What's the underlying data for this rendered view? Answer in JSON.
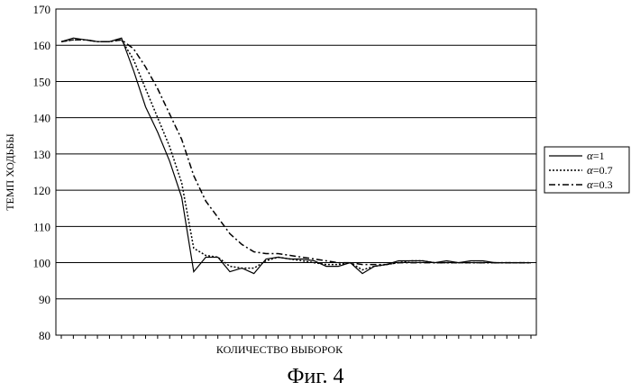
{
  "chart_data": {
    "type": "line",
    "title": "",
    "xlabel": "КОЛИЧЕСТВО ВЫБОРОК",
    "ylabel": "ТЕМП ХОДЬБЫ",
    "caption": "Фиг. 4",
    "ylim": [
      80,
      170
    ],
    "yticks": [
      80,
      90,
      100,
      110,
      120,
      130,
      140,
      150,
      160,
      170
    ],
    "xlim": [
      0,
      39
    ],
    "grid": "horizontal",
    "legend_position": "right",
    "series": [
      {
        "name": "α=1",
        "legend_symbol": "α",
        "legend_value": "=1",
        "style": "solid",
        "x": [
          0,
          1,
          2,
          3,
          4,
          5,
          6,
          7,
          8,
          9,
          10,
          11,
          12,
          13,
          14,
          15,
          16,
          17,
          18,
          19,
          20,
          21,
          22,
          23,
          24,
          25,
          26,
          27,
          28,
          29,
          30,
          31,
          32,
          33,
          34,
          35,
          36,
          37,
          38,
          39
        ],
        "values": [
          161,
          162,
          161.5,
          161,
          161,
          162,
          153,
          143,
          136,
          128,
          118,
          97.5,
          101.5,
          101.5,
          97.5,
          98.5,
          97,
          101,
          101.5,
          101,
          101,
          100.5,
          99,
          99,
          100,
          97,
          99,
          99.5,
          100.5,
          100.5,
          100.5,
          100,
          100.5,
          100,
          100.5,
          100.5,
          100,
          100,
          100,
          100
        ]
      },
      {
        "name": "α=0.7",
        "legend_symbol": "α",
        "legend_value": "=0.7",
        "style": "dotted",
        "x": [
          0,
          1,
          2,
          3,
          4,
          5,
          6,
          7,
          8,
          9,
          10,
          11,
          12,
          13,
          14,
          15,
          16,
          17,
          18,
          19,
          20,
          21,
          22,
          23,
          24,
          25,
          26,
          27,
          28,
          29,
          30,
          31,
          32,
          33,
          34,
          35,
          36,
          37,
          38,
          39
        ],
        "values": [
          161,
          161.5,
          161.5,
          161,
          161,
          161.5,
          156,
          148,
          140,
          132,
          122,
          104,
          102,
          101.5,
          99,
          98.5,
          98.5,
          100.5,
          101.5,
          101,
          100.5,
          100,
          99.5,
          99.5,
          100,
          98,
          99,
          99.5,
          100,
          100.5,
          100.5,
          100,
          100,
          100,
          100,
          100,
          100,
          100,
          100,
          100
        ]
      },
      {
        "name": "α=0.3",
        "legend_symbol": "α",
        "legend_value": "=0.3",
        "style": "dashdot",
        "x": [
          0,
          1,
          2,
          3,
          4,
          5,
          6,
          7,
          8,
          9,
          10,
          11,
          12,
          13,
          14,
          15,
          16,
          17,
          18,
          19,
          20,
          21,
          22,
          23,
          24,
          25,
          26,
          27,
          28,
          29,
          30,
          31,
          32,
          33,
          34,
          35,
          36,
          37,
          38,
          39
        ],
        "values": [
          161,
          161.5,
          161.5,
          161,
          161,
          161.5,
          159,
          154,
          148,
          141,
          134,
          124,
          117,
          112.5,
          108,
          105,
          103,
          102.5,
          102.5,
          102,
          101.5,
          101,
          100.5,
          100,
          100,
          99.5,
          99.5,
          99.5,
          100,
          100,
          100,
          100,
          100,
          100,
          100,
          100,
          100,
          100,
          100,
          100
        ]
      }
    ]
  }
}
